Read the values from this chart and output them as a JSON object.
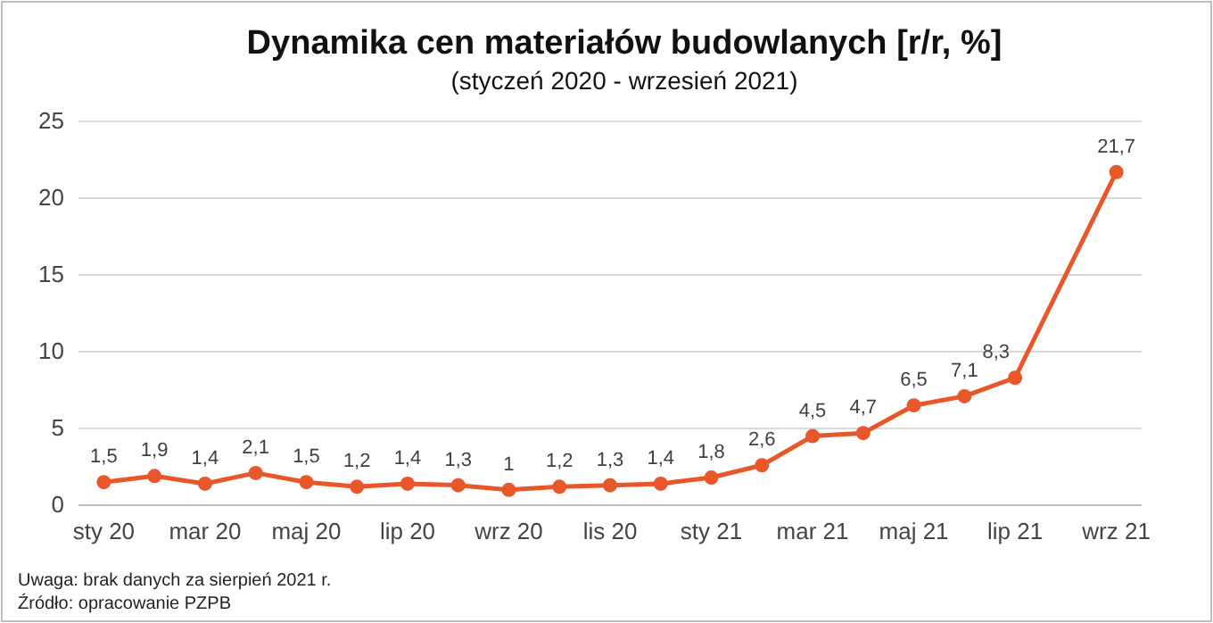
{
  "chart_data": {
    "type": "line",
    "title": "Dynamika cen materiałów budowlanych [r/r, %]",
    "subtitle": "(styczeń 2020 - wrzesień 2021)",
    "categories": [
      "sty 20",
      null,
      "mar 20",
      null,
      "maj 20",
      null,
      "lip 20",
      null,
      "wrz 20",
      null,
      "lis 20",
      null,
      "sty 21",
      null,
      "mar 21",
      null,
      "maj 21",
      null,
      "lip 21",
      null,
      "wrz 21"
    ],
    "series": [
      {
        "color": "#e8572a",
        "values": [
          1.5,
          1.9,
          1.4,
          2.1,
          1.5,
          1.2,
          1.4,
          1.3,
          1,
          1.2,
          1.3,
          1.4,
          1.8,
          2.6,
          4.5,
          4.7,
          6.5,
          7.1,
          8.3,
          null,
          21.7
        ],
        "value_labels": [
          "1,5",
          "1,9",
          "1,4",
          "2,1",
          "1,5",
          "1,2",
          "1,4",
          "1,3",
          "1",
          "1,2",
          "1,3",
          "1,4",
          "1,8",
          "2,6",
          "4,5",
          "4,7",
          "6,5",
          "7,1",
          "8,3",
          null,
          "21,7"
        ]
      }
    ],
    "ylim": [
      0,
      25
    ],
    "yticks": [
      0,
      5,
      10,
      15,
      20,
      25
    ],
    "grid": "y",
    "marker": "circle",
    "line_style": "solid",
    "annotations": [
      "Uwaga: brak danych za sierpień 2021 r.",
      "Źródło: opracowanie PZPB"
    ]
  }
}
